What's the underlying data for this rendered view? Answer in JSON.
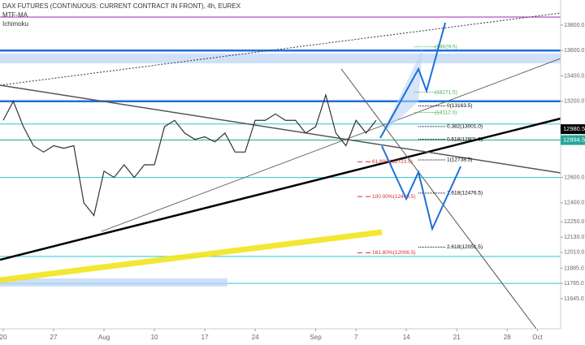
{
  "chart_data": {
    "type": "line",
    "title": "DAX FUTURES (CONTINUOUS: CURRENT CONTRACT IN FRONT), 4h, EUREX",
    "indicators": [
      "MTF-MA",
      "Ichimoku"
    ],
    "xlim": [
      -0.32,
      55.3
    ],
    "xticks": [
      {
        "value": 0,
        "label": "20"
      },
      {
        "value": 5,
        "label": "27"
      },
      {
        "value": 10,
        "label": "Aug"
      },
      {
        "value": 15,
        "label": "10"
      },
      {
        "value": 20,
        "label": "17"
      },
      {
        "value": 25,
        "label": "24"
      },
      {
        "value": 31,
        "label": "Sep"
      },
      {
        "value": 35,
        "label": "7"
      },
      {
        "value": 40,
        "label": "14"
      },
      {
        "value": 45,
        "label": "21"
      },
      {
        "value": 50,
        "label": "28"
      },
      {
        "value": 53,
        "label": "Oct"
      }
    ],
    "ylim": [
      11408,
      13998
    ],
    "yticks": [
      {
        "value": 13800,
        "label": "13800.0"
      },
      {
        "value": 13600,
        "label": "13600.0"
      },
      {
        "value": 13400,
        "label": "13400.0"
      },
      {
        "value": 13200,
        "label": "13200.0"
      },
      {
        "value": 12600,
        "label": "12600.0"
      },
      {
        "value": 12400,
        "label": "12400.0"
      },
      {
        "value": 12250,
        "label": "12250.0"
      },
      {
        "value": 12130,
        "label": "12130.0"
      },
      {
        "value": 12010,
        "label": "12010.0"
      },
      {
        "value": 11885,
        "label": "11885.0"
      },
      {
        "value": 11765,
        "label": "11765.0"
      },
      {
        "value": 11645,
        "label": "11645.0"
      }
    ],
    "series": [
      {
        "name": "DAX",
        "color": "#333333",
        "x": [
          0,
          1,
          2,
          3,
          4,
          5,
          6,
          7,
          8,
          9,
          10,
          11,
          12,
          13,
          14,
          15,
          16,
          17,
          18,
          19,
          20,
          21,
          22,
          23,
          24,
          25,
          26,
          27,
          28,
          29,
          30,
          31,
          32,
          33,
          34,
          35,
          36,
          37
        ],
        "values": [
          13050,
          13200,
          13000,
          12850,
          12800,
          12850,
          12830,
          12850,
          12400,
          12300,
          12650,
          12600,
          12700,
          12600,
          12700,
          12700,
          13000,
          13050,
          12950,
          12900,
          12920,
          12880,
          12950,
          12800,
          12800,
          13050,
          13050,
          13100,
          13050,
          13050,
          12950,
          13000,
          13250,
          12950,
          12850,
          13050,
          12950,
          13050
        ]
      }
    ],
    "levels": [
      {
        "value": 13864,
        "color": "#9c27b0"
      },
      {
        "value": 13600,
        "color": "#1e6fd9"
      },
      {
        "value": 13200,
        "color": "#1e6fd9"
      },
      {
        "value": 13021,
        "color": "#26c6da"
      },
      {
        "value": 12894.5,
        "color": "#26a69a"
      },
      {
        "value": 12600,
        "color": "#26c6da"
      },
      {
        "value": 11978,
        "color": "#26c6da"
      },
      {
        "value": 11765,
        "color": "#26c6da"
      }
    ],
    "price_tags": [
      {
        "value": 12980.5,
        "color": "#000000"
      },
      {
        "value": 12894.5,
        "color": "#26a69a"
      }
    ],
    "annotations": [
      {
        "label": "0(13163.5)",
        "value": 13163.5,
        "color": "#000000"
      },
      {
        "label": "0.382(13001.0)",
        "value": 13001.0,
        "color": "#000000"
      },
      {
        "label": "0.618(12901.0)",
        "value": 12901.0,
        "color": "#000000"
      },
      {
        "label": "1(12738.5)",
        "value": 12738.5,
        "color": "#000000"
      },
      {
        "label": "1.618(12476.5)",
        "value": 12476.5,
        "color": "#000000"
      },
      {
        "label": "2.618(12051.5)",
        "value": 12051.5,
        "color": "#000000"
      },
      {
        "label": "61.80%(12723.5)",
        "value": 12723.5,
        "color": "#d32f2f"
      },
      {
        "label": "100.00%(12449.5)",
        "value": 12449.5,
        "color": "#d32f2f"
      },
      {
        "label": "161.80%(12006.5)",
        "value": 12006.5,
        "color": "#d32f2f"
      },
      {
        "label": "(13629.5)",
        "value": 13629.5,
        "color": "#4caf50"
      },
      {
        "label": "(13271.5)",
        "value": 13271.5,
        "color": "#4caf50"
      },
      {
        "label": "(13112.0)",
        "value": 13112.0,
        "color": "#4caf50"
      }
    ]
  }
}
